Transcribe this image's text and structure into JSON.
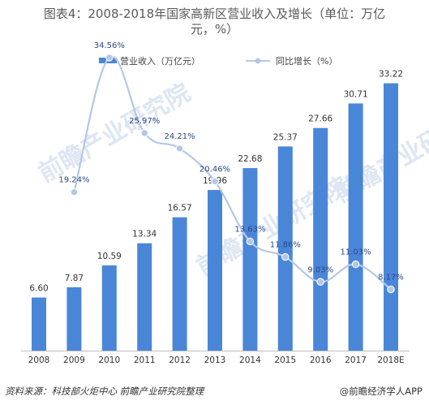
{
  "title": "图表4：2008-2018年国家高新区营业收入及增长（单位：万亿元，%）",
  "footer": {
    "source": "资料来源：科技部火炬中心 前瞻产业研究院整理",
    "brand": "@前瞻经济学人APP"
  },
  "watermark": "前瞻产业研究院",
  "colors": {
    "bar": "#4a86d8",
    "line": "#b4c8e4",
    "marker": "#b4c8e4",
    "marker_stroke": "#ffffff"
  },
  "chart_data": {
    "type": "bar",
    "categories": [
      "2008",
      "2009",
      "2010",
      "2011",
      "2012",
      "2013",
      "2014",
      "2015",
      "2016",
      "2017",
      "2018E"
    ],
    "series": [
      {
        "name": "营业收入（万亿元）",
        "type": "bar",
        "values": [
          6.6,
          7.87,
          10.59,
          13.34,
          16.57,
          19.96,
          22.68,
          25.37,
          27.66,
          30.71,
          33.22
        ],
        "labels": [
          "6.60",
          "7.87",
          "10.59",
          "13.34",
          "16.57",
          "19.96",
          "22.68",
          "25.37",
          "27.66",
          "30.71",
          "33.22"
        ],
        "axis": "left"
      },
      {
        "name": "同比增长（%）",
        "type": "line",
        "values": [
          null,
          19.24,
          34.56,
          25.97,
          24.21,
          20.46,
          13.63,
          11.86,
          9.03,
          11.03,
          8.17
        ],
        "labels": [
          "",
          "19.24%",
          "34.56%",
          "25.97%",
          "24.21%",
          "20.46%",
          "13.63%",
          "11.86%",
          "9.03%",
          "11.03%",
          "8.17%"
        ],
        "axis": "right"
      }
    ],
    "legend_position": "top",
    "grid": false,
    "ylim_left": [
      0,
      36
    ],
    "ylim_right": [
      0,
      40
    ]
  }
}
